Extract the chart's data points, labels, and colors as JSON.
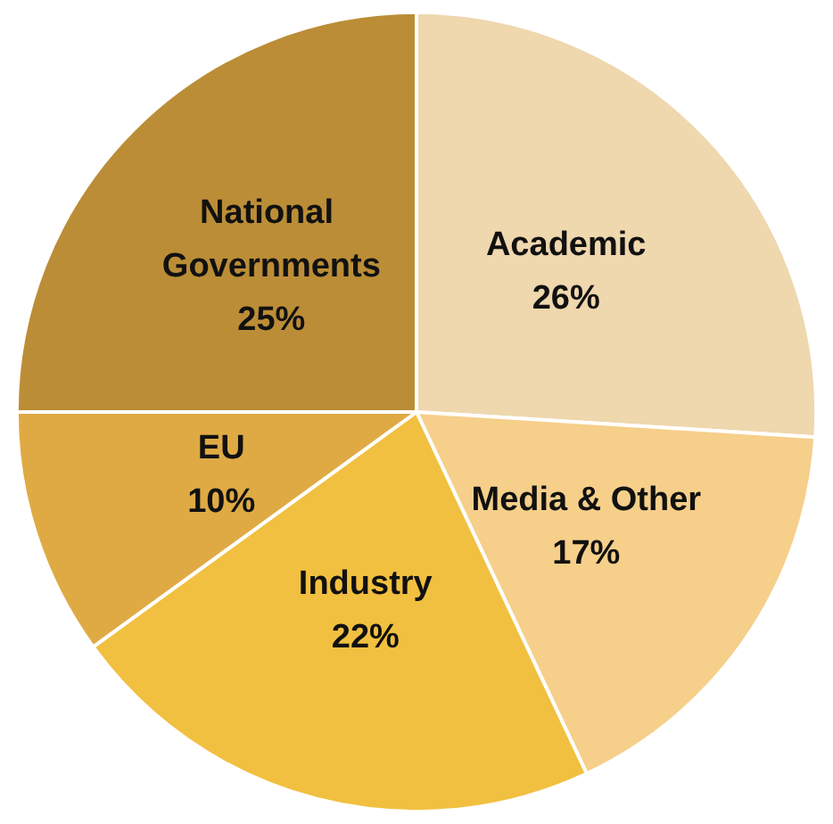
{
  "chart_data": {
    "type": "pie",
    "categories": [
      "Academic",
      "Media & Other",
      "Industry",
      "EU",
      "National Governments"
    ],
    "values": [
      26,
      17,
      22,
      10,
      25
    ],
    "value_labels": [
      "26%",
      "17%",
      "22%",
      "10%",
      "25%"
    ],
    "colors": [
      "#efd7ae",
      "#f6cf8a",
      "#f2c040",
      "#dfaa44",
      "#bb8d36"
    ],
    "legend": false
  }
}
